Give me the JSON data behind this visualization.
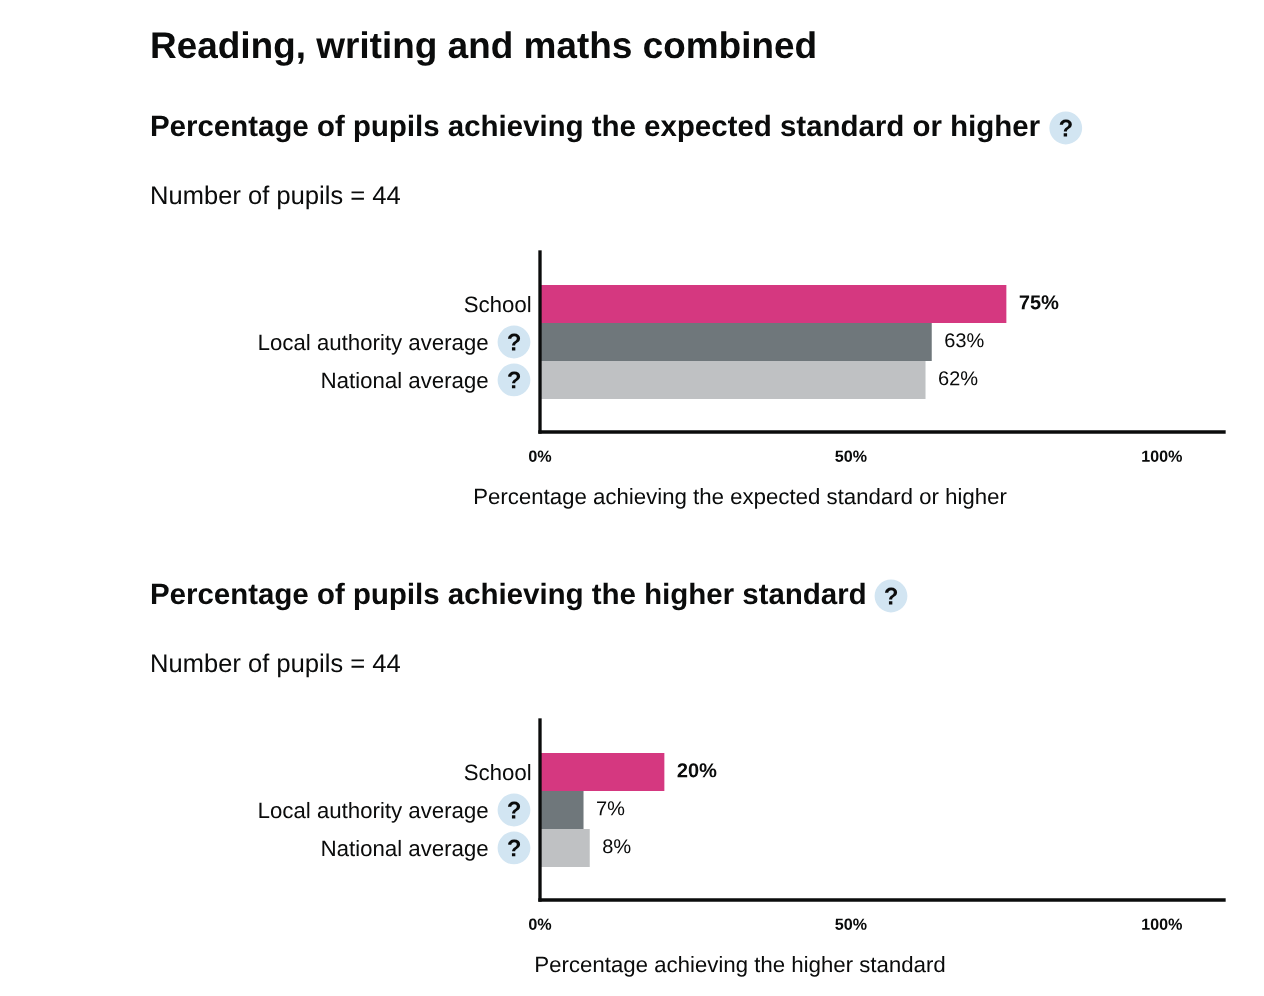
{
  "chart_data": [
    {
      "type": "bar",
      "orientation": "horizontal",
      "title": "Reading, writing and maths combined",
      "subtitle": "Percentage of pupils achieving the expected standard or higher",
      "annotations": [
        "Number of pupils = 44"
      ],
      "categories": [
        "School",
        "Local authority average",
        "National average"
      ],
      "values": [
        75,
        63,
        62
      ],
      "colors": [
        "#d53880",
        "#6f777b",
        "#bfc1c3"
      ],
      "value_labels": [
        "75%",
        "63%",
        "62%"
      ],
      "xlabel": "Percentage achieving the expected standard or higher",
      "xlim": [
        0,
        110
      ],
      "xticks": [
        {
          "value": 0,
          "label": "0%"
        },
        {
          "value": 50,
          "label": "50%"
        },
        {
          "value": 100,
          "label": "100%"
        }
      ]
    },
    {
      "type": "bar",
      "orientation": "horizontal",
      "subtitle": "Percentage of pupils achieving the higher standard",
      "annotations": [
        "Number of pupils = 44"
      ],
      "categories": [
        "School",
        "Local authority average",
        "National average"
      ],
      "values": [
        20,
        7,
        8
      ],
      "colors": [
        "#d53880",
        "#6f777b",
        "#bfc1c3"
      ],
      "value_labels": [
        "20%",
        "7%",
        "8%"
      ],
      "xlabel": "Percentage achieving the higher standard",
      "xlim": [
        0,
        110
      ],
      "xticks": [
        {
          "value": 0,
          "label": "0%"
        },
        {
          "value": 50,
          "label": "50%"
        },
        {
          "value": 100,
          "label": "100%"
        }
      ]
    }
  ]
}
